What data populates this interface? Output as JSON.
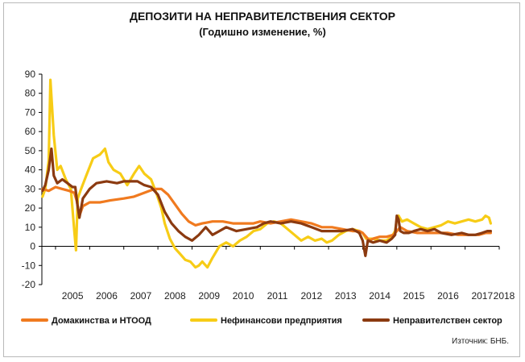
{
  "chart_data": {
    "type": "line",
    "title": "ДЕПОЗИТИ НА НЕПРАВИТЕЛСТВЕНИЯ СЕКТОР",
    "subtitle": "(Годишно изменение, %)",
    "ylim": [
      -20,
      90
    ],
    "xlim": [
      2004.6,
      2018.0
    ],
    "y_ticks": [
      -20,
      -10,
      0,
      10,
      20,
      30,
      40,
      50,
      60,
      70,
      80,
      90
    ],
    "x_ticks": [
      "2005",
      "2006",
      "2007",
      "2008",
      "2009",
      "2010",
      "2011",
      "2012",
      "2013",
      "2014",
      "2015",
      "2016",
      "2017",
      "2018"
    ],
    "grid": false,
    "legend_position": "bottom",
    "source": "Източник: БНБ.",
    "series": [
      {
        "name": "Домакинства и НТООД",
        "color": "#f07a1f",
        "x": [
          2004.62,
          2004.8,
          2005.0,
          2005.2,
          2005.4,
          2005.55,
          2005.62,
          2005.7,
          2005.8,
          2006.0,
          2006.3,
          2006.6,
          2007.0,
          2007.3,
          2007.6,
          2007.9,
          2008.1,
          2008.3,
          2008.5,
          2008.7,
          2008.9,
          2009.1,
          2009.3,
          2009.6,
          2009.9,
          2010.2,
          2010.5,
          2010.8,
          2011.0,
          2011.3,
          2011.6,
          2011.9,
          2012.2,
          2012.5,
          2012.8,
          2013.1,
          2013.4,
          2013.7,
          2013.9,
          2014.0,
          2014.1,
          2014.2,
          2014.3,
          2014.5,
          2014.7,
          2014.9,
          2015.0,
          2015.1,
          2015.3,
          2015.6,
          2015.9,
          2016.2,
          2016.5,
          2016.8,
          2017.1,
          2017.4,
          2017.6,
          2017.75
        ],
        "values": [
          30,
          29,
          31,
          30,
          29,
          28,
          24,
          16,
          21,
          23,
          23,
          24,
          25,
          26,
          28,
          30,
          30,
          27,
          22,
          17,
          13,
          11,
          12,
          13,
          13,
          12,
          12,
          12,
          13,
          12,
          13,
          14,
          13,
          12,
          10,
          10,
          9,
          8,
          8,
          7,
          5,
          3,
          4,
          5,
          5,
          6,
          8,
          10,
          8,
          7,
          7,
          7,
          7,
          6,
          6,
          6,
          7,
          7
        ]
      },
      {
        "name": "Нефинансови предприятия",
        "color": "#f7cc16",
        "x": [
          2004.62,
          2004.7,
          2004.8,
          2004.85,
          2004.95,
          2005.05,
          2005.15,
          2005.3,
          2005.45,
          2005.55,
          2005.6,
          2005.65,
          2005.75,
          2005.9,
          2006.1,
          2006.3,
          2006.45,
          2006.55,
          2006.7,
          2006.9,
          2007.1,
          2007.3,
          2007.45,
          2007.6,
          2007.8,
          2007.95,
          2008.1,
          2008.2,
          2008.35,
          2008.5,
          2008.65,
          2008.8,
          2008.95,
          2009.1,
          2009.2,
          2009.3,
          2009.45,
          2009.6,
          2009.8,
          2010.0,
          2010.2,
          2010.4,
          2010.6,
          2010.8,
          2011.0,
          2011.2,
          2011.4,
          2011.6,
          2011.8,
          2012.0,
          2012.2,
          2012.4,
          2012.6,
          2012.8,
          2012.95,
          2013.1,
          2013.3,
          2013.5,
          2013.7,
          2013.9,
          2014.0,
          2014.1,
          2014.3,
          2014.5,
          2014.7,
          2014.85,
          2014.95,
          2015.0,
          2015.05,
          2015.15,
          2015.3,
          2015.5,
          2015.7,
          2015.9,
          2016.1,
          2016.3,
          2016.5,
          2016.7,
          2016.9,
          2017.1,
          2017.3,
          2017.5,
          2017.6,
          2017.7,
          2017.75
        ],
        "values": [
          26,
          30,
          45,
          87,
          58,
          40,
          42,
          35,
          30,
          8,
          -2,
          25,
          30,
          37,
          46,
          48,
          51,
          44,
          40,
          38,
          32,
          38,
          42,
          38,
          35,
          28,
          20,
          12,
          4,
          -1,
          -4,
          -7,
          -8,
          -11,
          -10,
          -8,
          -11,
          -6,
          0,
          2,
          0,
          3,
          5,
          8,
          9,
          12,
          13,
          12,
          9,
          6,
          3,
          5,
          3,
          4,
          2,
          3,
          6,
          8,
          9,
          8,
          7,
          4,
          4,
          3,
          3,
          5,
          8,
          14,
          16,
          13,
          14,
          12,
          10,
          9,
          10,
          11,
          13,
          12,
          13,
          14,
          13,
          14,
          16,
          15,
          12
        ]
      },
      {
        "name": "Неправителствен сектор",
        "color": "#8b3a10",
        "x": [
          2004.62,
          2004.7,
          2004.8,
          2004.88,
          2004.95,
          2005.05,
          2005.2,
          2005.35,
          2005.5,
          2005.58,
          2005.64,
          2005.7,
          2005.8,
          2006.0,
          2006.2,
          2006.5,
          2006.8,
          2007.0,
          2007.2,
          2007.4,
          2007.6,
          2007.8,
          2008.0,
          2008.2,
          2008.4,
          2008.6,
          2008.8,
          2009.0,
          2009.2,
          2009.4,
          2009.6,
          2009.8,
          2010.0,
          2010.3,
          2010.6,
          2010.9,
          2011.1,
          2011.3,
          2011.6,
          2011.9,
          2012.2,
          2012.5,
          2012.8,
          2013.1,
          2013.4,
          2013.7,
          2013.9,
          2014.0,
          2014.08,
          2014.15,
          2014.3,
          2014.5,
          2014.7,
          2014.85,
          2014.95,
          2015.0,
          2015.05,
          2015.1,
          2015.2,
          2015.35,
          2015.5,
          2015.7,
          2015.9,
          2016.1,
          2016.3,
          2016.6,
          2016.9,
          2017.1,
          2017.3,
          2017.5,
          2017.65,
          2017.75
        ],
        "values": [
          29,
          32,
          40,
          51,
          37,
          33,
          35,
          33,
          31,
          31,
          22,
          15,
          25,
          30,
          33,
          34,
          33,
          34,
          34,
          34,
          32,
          31,
          27,
          18,
          12,
          8,
          5,
          3,
          6,
          10,
          6,
          8,
          10,
          8,
          9,
          10,
          12,
          13,
          12,
          13,
          12,
          10,
          8,
          8,
          8,
          9,
          7,
          3,
          -5,
          3,
          2,
          3,
          2,
          4,
          6,
          16,
          14,
          8,
          7,
          7,
          8,
          9,
          8,
          9,
          7,
          6,
          7,
          6,
          6,
          7,
          8,
          8
        ]
      }
    ]
  }
}
